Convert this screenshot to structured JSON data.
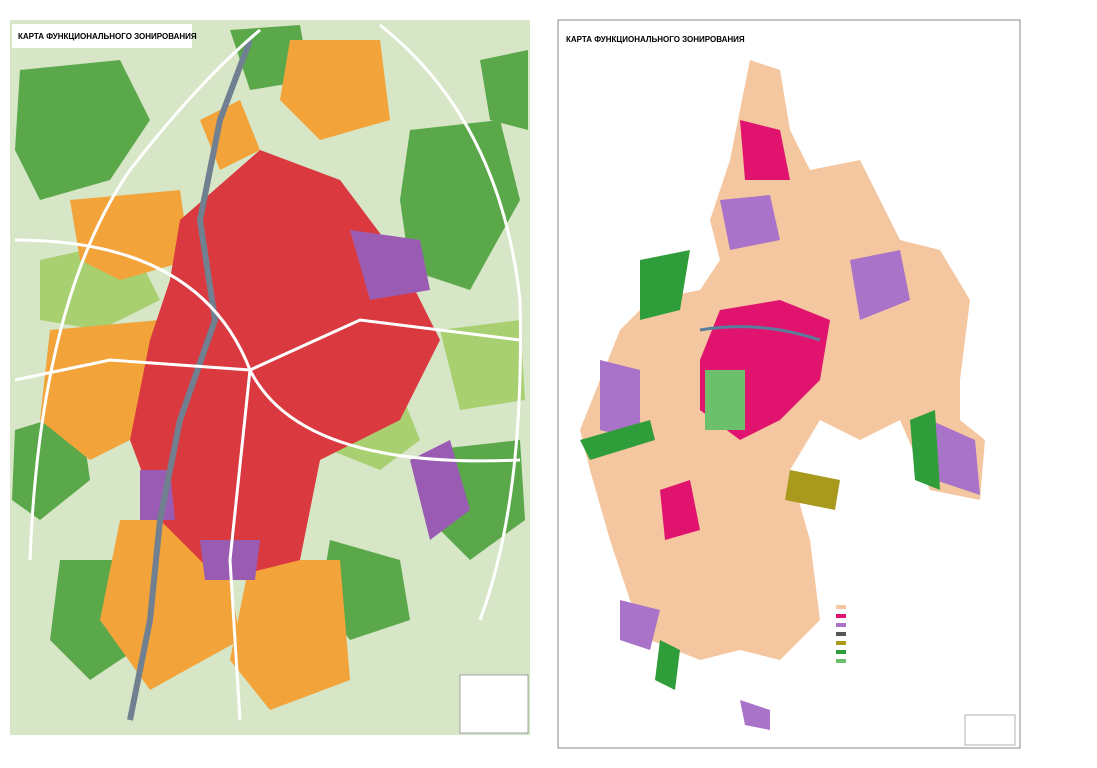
{
  "maps": [
    {
      "title": "КАРТА ФУНКЦИОНАЛЬНОГО ЗОНИРОВАНИЯ"
    },
    {
      "title": "КАРТА ФУНКЦИОНАЛЬНОГО ЗОНИРОВАНИЯ"
    }
  ]
}
